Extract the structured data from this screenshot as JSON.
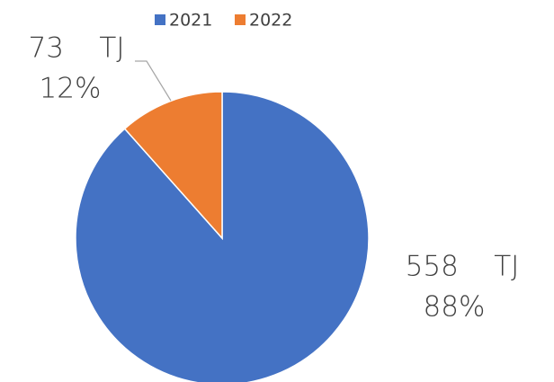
{
  "chart_data": {
    "type": "pie",
    "categories": [
      "2021",
      "2022"
    ],
    "values": [
      558,
      73
    ],
    "value_labels": [
      "558    TJ",
      "73    TJ"
    ],
    "percentages": [
      88,
      12
    ],
    "percentage_labels": [
      "88%",
      "12%"
    ],
    "colors": [
      "#4472c4",
      "#ed7d31"
    ],
    "legend": "top"
  }
}
